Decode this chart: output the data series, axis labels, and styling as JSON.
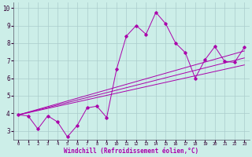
{
  "xlabel": "Windchill (Refroidissement éolien,°C)",
  "bg_color": "#cceee8",
  "grid_color": "#aacccc",
  "line_color": "#aa00aa",
  "xlim": [
    -0.5,
    23.5
  ],
  "ylim": [
    2.5,
    10.3
  ],
  "xticks": [
    0,
    1,
    2,
    3,
    4,
    5,
    6,
    7,
    8,
    9,
    10,
    11,
    12,
    13,
    14,
    15,
    16,
    17,
    18,
    19,
    20,
    21,
    22,
    23
  ],
  "yticks": [
    3,
    4,
    5,
    6,
    7,
    8,
    9,
    10
  ],
  "scatter_x": [
    0,
    1,
    2,
    3,
    4,
    5,
    6,
    7,
    8,
    9,
    10,
    11,
    12,
    13,
    14,
    15,
    16,
    17,
    18,
    19,
    20,
    21,
    22,
    23
  ],
  "scatter_y": [
    3.9,
    3.85,
    3.1,
    3.85,
    3.5,
    2.65,
    3.3,
    4.3,
    4.4,
    3.75,
    6.5,
    8.4,
    9.0,
    8.5,
    9.75,
    9.1,
    8.0,
    7.45,
    6.0,
    7.05,
    7.8,
    6.95,
    6.9,
    7.75
  ],
  "line1_x": [
    0,
    23
  ],
  "line1_y": [
    3.9,
    7.15
  ],
  "line2_x": [
    0,
    23
  ],
  "line2_y": [
    3.9,
    7.55
  ],
  "line3_x": [
    0,
    23
  ],
  "line3_y": [
    3.9,
    6.75
  ]
}
